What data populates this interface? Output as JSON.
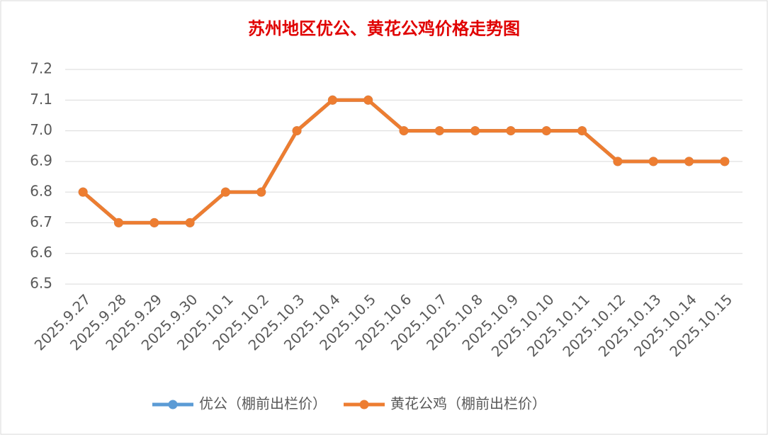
{
  "chart_data": {
    "type": "line",
    "title": "苏州地区优公、黄花公鸡价格走势图",
    "categories": [
      "2025.9.27",
      "2025.9.28",
      "2025.9.29",
      "2025.9.30",
      "2025.10.1",
      "2025.10.2",
      "2025.10.3",
      "2025.10.4",
      "2025.10.5",
      "2025.10.6",
      "2025.10.7",
      "2025.10.8",
      "2025.10.9",
      "2025.10.10",
      "2025.10.11",
      "2025.10.12",
      "2025.10.13",
      "2025.10.14",
      "2025.10.15"
    ],
    "series": [
      {
        "name": "优公（棚前出栏价）",
        "color": "#5b9bd5",
        "values": [
          6.8,
          6.7,
          6.7,
          6.7,
          6.8,
          6.8,
          7.0,
          7.1,
          7.1,
          7.0,
          7.0,
          7.0,
          7.0,
          7.0,
          7.0,
          6.9,
          6.9,
          6.9,
          6.9
        ]
      },
      {
        "name": "黄花公鸡（棚前出栏价）",
        "color": "#ed7d31",
        "values": [
          6.8,
          6.7,
          6.7,
          6.7,
          6.8,
          6.8,
          7.0,
          7.1,
          7.1,
          7.0,
          7.0,
          7.0,
          7.0,
          7.0,
          7.0,
          6.9,
          6.9,
          6.9,
          6.9
        ]
      }
    ],
    "ylim": [
      6.5,
      7.2
    ],
    "yticks": [
      6.5,
      6.6,
      6.7,
      6.8,
      6.9,
      {
        "value": 7,
        "label": "7.0"
      },
      7.1,
      7.2
    ],
    "grid": true,
    "legend": "bottom"
  }
}
